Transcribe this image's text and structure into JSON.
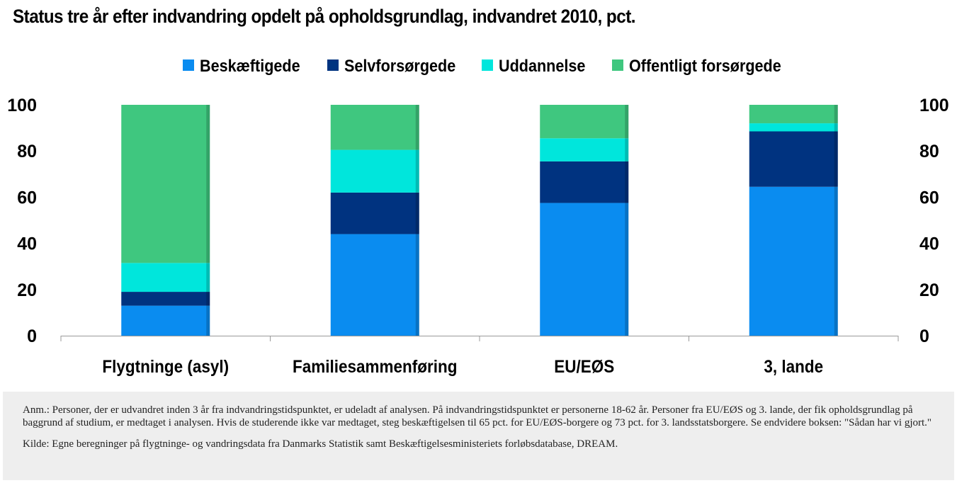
{
  "title": "Status tre år efter indvandring opdelt på opholdsgrundlag, indvandret 2010, pct.",
  "note": {
    "anm": "Anm.: Personer, der er udvandret inden 3 år fra indvandringstidspunktet, er udeladt af analysen. På indvandringstidspunktet er personerne 18-62 år. Personer fra EU/EØS og 3. lande, der fik opholdsgrundlag på baggrund af studium, er medtaget i analysen. Hvis de studerende ikke var medtaget, steg beskæftigelsen til 65 pct. for EU/EØS-borgere og 73 pct. for 3. landsstatsborgere. Se endvidere boksen: \"Sådan har vi gjort.\"",
    "kilde": "Kilde: Egne beregninger på flygtninge- og vandringsdata fra Danmarks Statistik samt Beskæftigelsesministeriets forløbsdatabase, DREAM."
  },
  "chart_data": {
    "type": "bar",
    "stacked": true,
    "categories": [
      "Flygtninge (asyl)",
      "Familiesammenføring",
      "EU/EØS",
      "3, lande"
    ],
    "series": [
      {
        "name": "Beskæftigede",
        "color": "#0a8cf0",
        "values": [
          13,
          44,
          57.5,
          64.5
        ]
      },
      {
        "name": "Selvforsørgede",
        "color": "#003380",
        "values": [
          6,
          18,
          18,
          24
        ]
      },
      {
        "name": "Uddannelse",
        "color": "#00e6dc",
        "values": [
          12.5,
          18.5,
          10,
          3.5
        ]
      },
      {
        "name": "Offentligt forsørgede",
        "color": "#3fc77f",
        "values": [
          68.5,
          19.5,
          14.5,
          8
        ]
      }
    ],
    "ylim": [
      0,
      100
    ],
    "yticks": [
      0,
      20,
      40,
      60,
      80,
      100
    ],
    "grid": false,
    "legend_position": "top"
  }
}
